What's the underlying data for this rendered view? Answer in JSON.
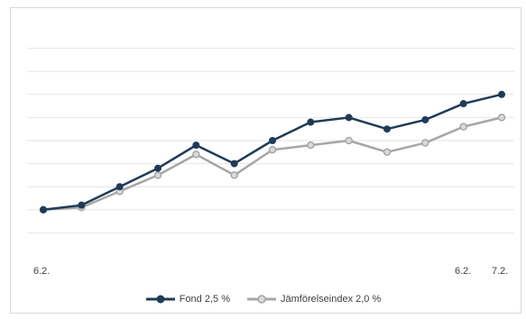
{
  "chart_data": {
    "type": "line",
    "title": "",
    "xlabel": "",
    "ylabel": "",
    "x_tick_labels": [
      "6.2.",
      "6.2.",
      "7.2."
    ],
    "ylim": [
      0,
      10
    ],
    "grid": true,
    "legend_position": "bottom",
    "series": [
      {
        "name": "Fond 2,5 %",
        "color": "#1f3b57",
        "values": [
          2.0,
          2.2,
          3.0,
          3.8,
          4.8,
          4.0,
          5.0,
          5.8,
          6.0,
          5.5,
          5.9,
          6.6,
          7.0
        ]
      },
      {
        "name": "Jämförelseindex 2,0 %",
        "color": "#a6a6a6",
        "values": [
          2.0,
          2.1,
          2.8,
          3.5,
          4.4,
          3.5,
          4.6,
          4.8,
          5.0,
          4.5,
          4.9,
          5.6,
          6.0
        ]
      }
    ]
  }
}
